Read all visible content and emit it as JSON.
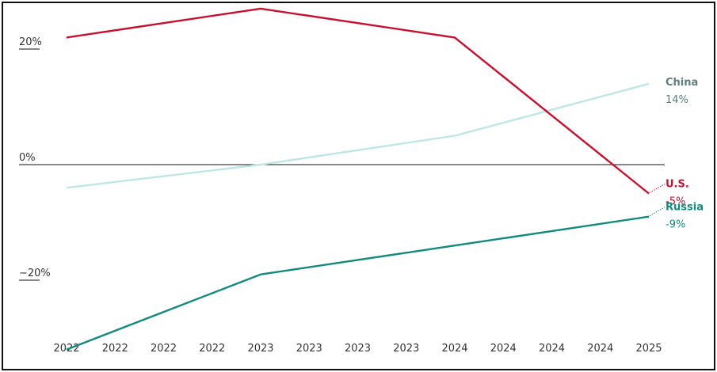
{
  "chart_data": {
    "type": "line",
    "title": "",
    "xlabel": "",
    "ylabel": "",
    "x_tick_labels": [
      "2022",
      "2022",
      "2022",
      "2022",
      "2023",
      "2023",
      "2023",
      "2023",
      "2024",
      "2024",
      "2024",
      "2024",
      "2025"
    ],
    "y_ticks": [
      {
        "value": 20,
        "label": "20%"
      },
      {
        "value": 0,
        "label": "0%"
      },
      {
        "value": -20,
        "label": "−20%"
      }
    ],
    "ylim": [
      -33,
      28
    ],
    "grid": false,
    "zero_line": true,
    "series": [
      {
        "name": "U.S.",
        "end_label": "-5%",
        "color": "#c8102e",
        "x": [
          0,
          4,
          8,
          12
        ],
        "values": [
          22,
          27,
          22,
          -5
        ]
      },
      {
        "name": "China",
        "end_label": "14%",
        "color": "#bde6e6",
        "label_color": "#5b7f7b",
        "x": [
          0,
          4,
          8,
          12
        ],
        "values": [
          -4,
          0,
          5,
          14
        ]
      },
      {
        "name": "Russia",
        "end_label": "-9%",
        "color": "#138a7e",
        "x": [
          0,
          4,
          8,
          12
        ],
        "values": [
          -32,
          -19,
          -14,
          -9
        ]
      }
    ]
  }
}
